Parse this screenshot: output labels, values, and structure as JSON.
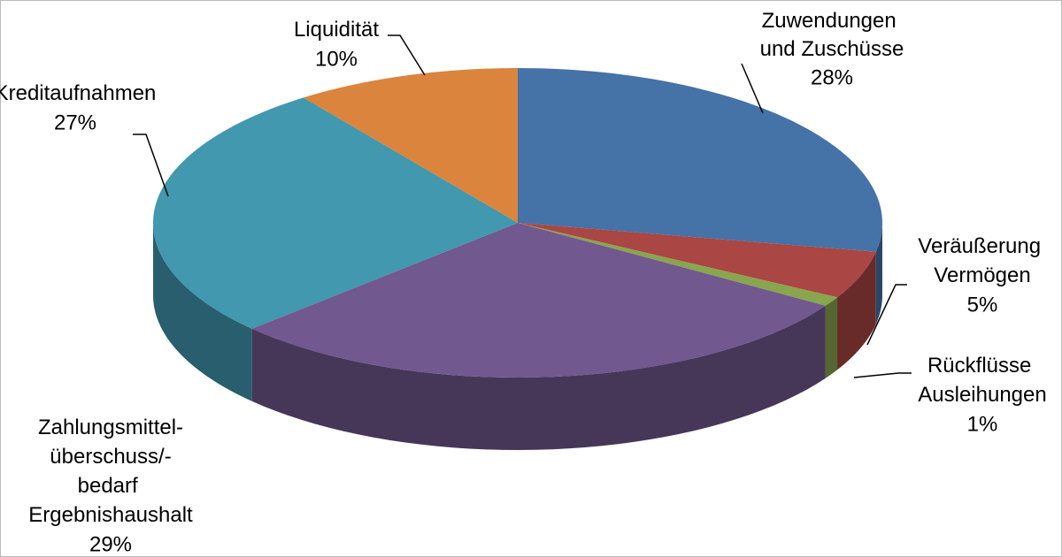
{
  "chart_data": {
    "type": "pie3d",
    "categories": [
      "Zuwendungen und Zuschüsse",
      "Veräußerung Vermögen",
      "Rückflüsse Ausleihungen",
      "Zahlungsmittel-überschuss/-bedarf Ergebnishaushalt",
      "Kreditaufnahmen",
      "Liquidität"
    ],
    "values": [
      28,
      5,
      1,
      29,
      27,
      10
    ],
    "value_labels": [
      "28%",
      "5%",
      "1%",
      "29%",
      "27%",
      "10%"
    ],
    "colors": [
      "#4572a7",
      "#aa4643",
      "#89a54e",
      "#71588f",
      "#4198af",
      "#db843d"
    ]
  }
}
